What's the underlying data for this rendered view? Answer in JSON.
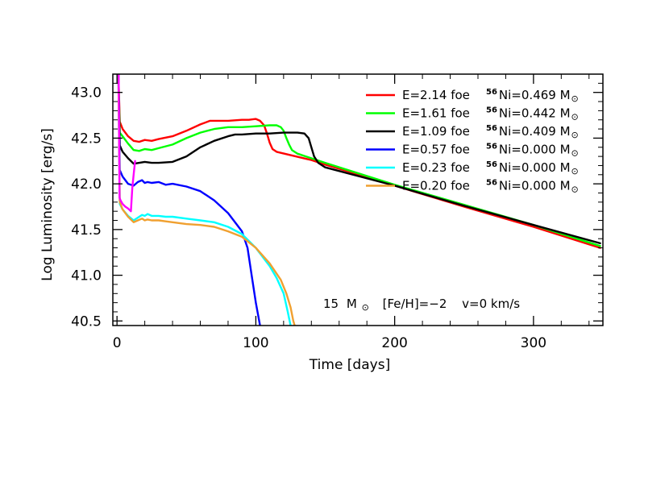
{
  "chart_data": {
    "type": "line",
    "title": "",
    "xlabel": "Time [days]",
    "ylabel": "Log Luminosity [erg/s]",
    "xlim": [
      -3,
      350
    ],
    "ylim": [
      40.45,
      43.2
    ],
    "x_ticks": [
      0,
      100,
      200,
      300
    ],
    "y_ticks": [
      40.5,
      41.0,
      41.5,
      42.0,
      42.5,
      43.0
    ],
    "x_tick_labels": [
      "0",
      "100",
      "200",
      "300"
    ],
    "y_tick_labels": [
      "40.5",
      "41.0",
      "41.5",
      "42.0",
      "42.5",
      "43.0"
    ],
    "grid": false,
    "legend_position": "top-right",
    "annotation": {
      "mass": "15",
      "mass_unit": "M",
      "metallicity": "[Fe/H]=−2",
      "velocity": "v=0 km/s"
    },
    "series": [
      {
        "name": "E=2.14 foe",
        "ni_label": "Ni=0.469 M",
        "ni_superscript": "56",
        "color": "#ff0000",
        "x": [
          1,
          2,
          4,
          8,
          12,
          16,
          20,
          25,
          30,
          40,
          50,
          60,
          67,
          70,
          80,
          90,
          95,
          100,
          103,
          106,
          108,
          110,
          112,
          115,
          140,
          150,
          170,
          200,
          250,
          300,
          348
        ],
        "y": [
          43.2,
          42.68,
          42.6,
          42.52,
          42.47,
          42.46,
          42.48,
          42.47,
          42.49,
          42.52,
          42.58,
          42.65,
          42.69,
          42.69,
          42.69,
          42.7,
          42.7,
          42.71,
          42.69,
          42.64,
          42.55,
          42.45,
          42.38,
          42.35,
          42.26,
          42.21,
          42.12,
          41.98,
          41.75,
          41.53,
          41.3
        ]
      },
      {
        "name": "E=1.61 foe",
        "ni_label": "Ni=0.442 M",
        "ni_superscript": "56",
        "color": "#00ff00",
        "x": [
          1,
          2,
          4,
          8,
          12,
          16,
          20,
          25,
          30,
          40,
          50,
          60,
          70,
          80,
          90,
          100,
          110,
          115,
          118,
          120,
          122,
          124,
          126,
          130,
          140,
          150,
          200,
          250,
          300,
          348
        ],
        "y": [
          43.2,
          42.56,
          42.52,
          42.44,
          42.37,
          42.36,
          42.38,
          42.37,
          42.39,
          42.43,
          42.5,
          42.56,
          42.6,
          42.62,
          42.62,
          42.63,
          42.64,
          42.64,
          42.62,
          42.58,
          42.5,
          42.43,
          42.37,
          42.33,
          42.28,
          42.23,
          41.99,
          41.77,
          41.55,
          41.32
        ]
      },
      {
        "name": "E=1.09 foe",
        "ni_label": "Ni=0.409 M",
        "ni_superscript": "56",
        "color": "#000000",
        "x": [
          1,
          2,
          4,
          8,
          12,
          16,
          20,
          25,
          30,
          40,
          50,
          60,
          70,
          80,
          85,
          90,
          100,
          110,
          120,
          130,
          135,
          138,
          140,
          142,
          145,
          150,
          200,
          250,
          300,
          348
        ],
        "y": [
          43.2,
          42.42,
          42.35,
          42.28,
          42.22,
          42.23,
          42.24,
          42.23,
          42.23,
          42.24,
          42.3,
          42.4,
          42.47,
          42.52,
          42.54,
          42.54,
          42.55,
          42.55,
          42.56,
          42.56,
          42.55,
          42.5,
          42.4,
          42.3,
          42.23,
          42.18,
          41.98,
          41.76,
          41.55,
          41.35
        ]
      },
      {
        "name": "E=0.57 foe",
        "ni_label": "Ni=0.000 M",
        "ni_superscript": "56",
        "color": "#0000ff",
        "x": [
          1,
          2,
          4,
          8,
          12,
          15,
          18,
          20,
          22,
          25,
          30,
          35,
          40,
          50,
          60,
          70,
          80,
          90,
          94,
          97,
          100,
          103
        ],
        "y": [
          43.2,
          42.15,
          42.08,
          42.0,
          41.98,
          42.02,
          42.04,
          42.01,
          42.02,
          42.01,
          42.02,
          41.99,
          42.0,
          41.97,
          41.92,
          41.82,
          41.68,
          41.48,
          41.3,
          41.0,
          40.7,
          40.45
        ]
      },
      {
        "name": "E=0.23 foe",
        "ni_label": "Ni=0.000 M",
        "ni_superscript": "56",
        "color": "#00ffff",
        "x": [
          1,
          2,
          4,
          8,
          12,
          15,
          18,
          20,
          22,
          25,
          30,
          35,
          40,
          50,
          60,
          70,
          80,
          90,
          100,
          110,
          115,
          120,
          123,
          125
        ],
        "y": [
          43.2,
          41.78,
          41.72,
          41.65,
          41.6,
          41.63,
          41.66,
          41.65,
          41.67,
          41.65,
          41.65,
          41.64,
          41.64,
          41.62,
          41.6,
          41.58,
          41.53,
          41.45,
          41.3,
          41.1,
          40.97,
          40.8,
          40.6,
          40.45
        ]
      },
      {
        "name": "E=0.20 foe",
        "ni_label": "Ni=0.000 M",
        "ni_superscript": "56",
        "color": "#f0a030",
        "x": [
          1,
          2,
          4,
          8,
          12,
          15,
          18,
          20,
          22,
          25,
          30,
          35,
          40,
          50,
          60,
          70,
          80,
          90,
          100,
          110,
          118,
          122,
          125,
          127,
          128
        ],
        "y": [
          43.2,
          41.8,
          41.72,
          41.64,
          41.58,
          41.6,
          41.62,
          41.6,
          41.61,
          41.6,
          41.6,
          41.59,
          41.58,
          41.56,
          41.55,
          41.53,
          41.48,
          41.42,
          41.3,
          41.13,
          40.95,
          40.8,
          40.65,
          40.5,
          40.45
        ]
      },
      {
        "name": "",
        "ni_label": "",
        "ni_superscript": "",
        "color": "#ff00ff",
        "x": [
          1.2,
          1.8,
          2.5,
          4,
          6,
          8,
          10,
          11,
          12,
          13
        ],
        "y": [
          43.2,
          41.85,
          41.82,
          41.78,
          41.75,
          41.73,
          41.7,
          41.95,
          42.1,
          42.25
        ]
      }
    ]
  }
}
